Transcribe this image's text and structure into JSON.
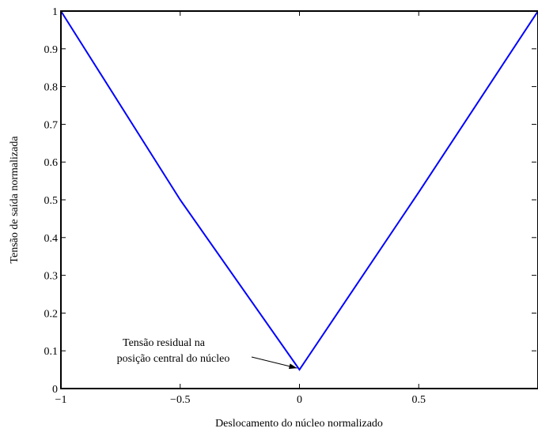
{
  "chart_data": {
    "type": "line",
    "title": "",
    "xlabel": "Deslocamento do núcleo normalizado",
    "ylabel": "Tensão de saída normalizada",
    "xlim": [
      -1,
      1
    ],
    "ylim": [
      0,
      1
    ],
    "x_ticks": [
      -1,
      -0.5,
      0,
      0.5
    ],
    "x_tick_labels": [
      "−1",
      "−0.5",
      "0",
      "0.5"
    ],
    "y_ticks": [
      0,
      0.1,
      0.2,
      0.3,
      0.4,
      0.5,
      0.6,
      0.7,
      0.8,
      0.9,
      1
    ],
    "y_tick_labels": [
      "0",
      "0.1",
      "0.2",
      "0.3",
      "0.4",
      "0.5",
      "0.6",
      "0.7",
      "0.8",
      "0.9",
      "1"
    ],
    "grid": false,
    "series": [
      {
        "color": "#0000ff",
        "x": [
          -1,
          -0.5,
          0,
          0.5,
          1
        ],
        "y": [
          1,
          0.5,
          0.05,
          0.52,
          1
        ]
      }
    ],
    "annotations": [
      {
        "lines": [
          "Tensão residual na",
          "posição central do núcleo"
        ],
        "arrow_to": [
          0,
          0.05
        ]
      }
    ]
  }
}
